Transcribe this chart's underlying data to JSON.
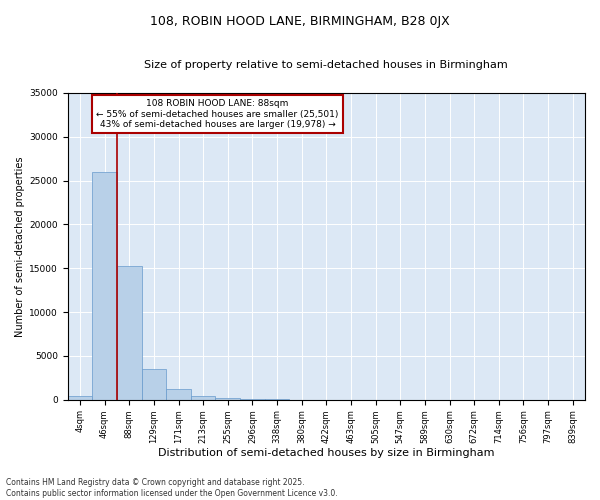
{
  "title1": "108, ROBIN HOOD LANE, BIRMINGHAM, B28 0JX",
  "title2": "Size of property relative to semi-detached houses in Birmingham",
  "xlabel": "Distribution of semi-detached houses by size in Birmingham",
  "ylabel": "Number of semi-detached properties",
  "bar_labels": [
    "4sqm",
    "46sqm",
    "88sqm",
    "129sqm",
    "171sqm",
    "213sqm",
    "255sqm",
    "296sqm",
    "338sqm",
    "380sqm",
    "422sqm",
    "463sqm",
    "505sqm",
    "547sqm",
    "589sqm",
    "630sqm",
    "672sqm",
    "714sqm",
    "756sqm",
    "797sqm",
    "839sqm"
  ],
  "bar_values": [
    400,
    26000,
    15200,
    3500,
    1200,
    400,
    200,
    60,
    20,
    10,
    5,
    3,
    2,
    1,
    1,
    0,
    0,
    0,
    0,
    0,
    0
  ],
  "bar_color": "#b8d0e8",
  "bar_edge_color": "#6699cc",
  "red_line_index": 2,
  "property_label": "108 ROBIN HOOD LANE: 88sqm",
  "smaller_text": "← 55% of semi-detached houses are smaller (25,501)",
  "larger_text": "43% of semi-detached houses are larger (19,978) →",
  "annotation_box_color": "#ffffff",
  "annotation_border_color": "#aa0000",
  "red_line_color": "#aa0000",
  "ylim": [
    0,
    35000
  ],
  "yticks": [
    0,
    5000,
    10000,
    15000,
    20000,
    25000,
    30000,
    35000
  ],
  "background_color": "#dce8f5",
  "footer_text": "Contains HM Land Registry data © Crown copyright and database right 2025.\nContains public sector information licensed under the Open Government Licence v3.0.",
  "title1_fontsize": 9,
  "title2_fontsize": 8,
  "xlabel_fontsize": 8,
  "ylabel_fontsize": 7,
  "tick_fontsize": 6,
  "annotation_fontsize": 6.5,
  "footer_fontsize": 5.5
}
